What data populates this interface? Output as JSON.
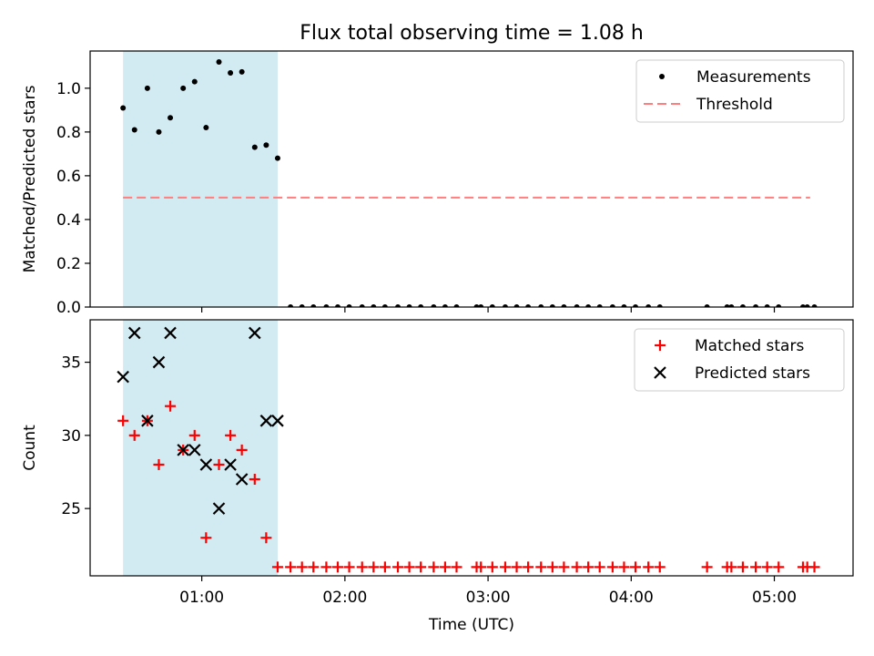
{
  "title": "Flux total observing time = 1.08 h",
  "colors": {
    "highlight": "#add8e6",
    "measurement": "#000000",
    "threshold": "#ff7f7f",
    "matched": "#ff0000",
    "predicted": "#000000"
  },
  "chart_data": [
    {
      "type": "scatter",
      "ylabel": "Matched/Predicted stars",
      "ylim": [
        0,
        1.17
      ],
      "yticks": [
        "0.0",
        "0.2",
        "0.4",
        "0.6",
        "0.8",
        "1.0"
      ],
      "xlim": [
        0.22,
        5.55
      ],
      "highlight_span_hours": [
        0.45,
        1.53
      ],
      "legend_position": "upper right",
      "series": [
        {
          "name": "Measurements",
          "marker": "dot",
          "x": [
            0.45,
            0.53,
            0.62,
            0.7,
            0.78,
            0.87,
            0.95,
            1.03,
            1.12,
            1.2,
            1.28,
            1.37,
            1.45,
            1.53,
            1.62,
            1.7,
            1.78,
            1.87,
            1.95,
            2.03,
            2.12,
            2.2,
            2.28,
            2.37,
            2.45,
            2.53,
            2.62,
            2.7,
            2.78,
            2.92,
            2.95,
            3.03,
            3.12,
            3.2,
            3.28,
            3.37,
            3.45,
            3.53,
            3.62,
            3.7,
            3.78,
            3.87,
            3.95,
            4.03,
            4.12,
            4.2,
            4.53,
            4.67,
            4.7,
            4.78,
            4.87,
            4.95,
            5.03,
            5.2,
            5.23,
            5.28
          ],
          "y": [
            0.91,
            0.81,
            1.0,
            0.8,
            0.865,
            1.0,
            1.03,
            0.82,
            1.12,
            1.07,
            1.075,
            0.73,
            0.74,
            0.68,
            0,
            0,
            0,
            0,
            0,
            0,
            0,
            0,
            0,
            0,
            0,
            0,
            0,
            0,
            0,
            0,
            0,
            0,
            0,
            0,
            0,
            0,
            0,
            0,
            0,
            0,
            0,
            0,
            0,
            0,
            0,
            0,
            0,
            0,
            0,
            0,
            0,
            0,
            0,
            0,
            0,
            0
          ]
        },
        {
          "name": "Threshold",
          "line": "dashed",
          "x": [
            0.45,
            5.25
          ],
          "y": [
            0.5,
            0.5
          ]
        }
      ]
    },
    {
      "type": "scatter",
      "ylabel": "Count",
      "xlabel": "Time (UTC)",
      "ylim": [
        20.4,
        37.9
      ],
      "yticks": [
        "25",
        "30",
        "35"
      ],
      "xlim": [
        0.22,
        5.55
      ],
      "xticks": [
        {
          "value": 1,
          "label": "01:00"
        },
        {
          "value": 2,
          "label": "02:00"
        },
        {
          "value": 3,
          "label": "03:00"
        },
        {
          "value": 4,
          "label": "04:00"
        },
        {
          "value": 5,
          "label": "05:00"
        }
      ],
      "highlight_span_hours": [
        0.45,
        1.53
      ],
      "legend_position": "upper right",
      "series": [
        {
          "name": "Matched stars",
          "marker": "plus",
          "x": [
            0.45,
            0.53,
            0.62,
            0.7,
            0.78,
            0.87,
            0.95,
            1.03,
            1.12,
            1.2,
            1.28,
            1.37,
            1.45,
            1.53,
            1.62,
            1.7,
            1.78,
            1.87,
            1.95,
            2.03,
            2.12,
            2.2,
            2.28,
            2.37,
            2.45,
            2.53,
            2.62,
            2.7,
            2.78,
            2.92,
            2.95,
            3.03,
            3.12,
            3.2,
            3.28,
            3.37,
            3.45,
            3.53,
            3.62,
            3.7,
            3.78,
            3.87,
            3.95,
            4.03,
            4.12,
            4.2,
            4.53,
            4.67,
            4.7,
            4.78,
            4.87,
            4.95,
            5.03,
            5.2,
            5.23,
            5.28
          ],
          "y": [
            31,
            30,
            31,
            28,
            32,
            29,
            30,
            23,
            28,
            30,
            29,
            27,
            23,
            21,
            21,
            21,
            21,
            21,
            21,
            21,
            21,
            21,
            21,
            21,
            21,
            21,
            21,
            21,
            21,
            21,
            21,
            21,
            21,
            21,
            21,
            21,
            21,
            21,
            21,
            21,
            21,
            21,
            21,
            21,
            21,
            21,
            21,
            21,
            21,
            21,
            21,
            21,
            21,
            21,
            21,
            21
          ]
        },
        {
          "name": "Predicted stars",
          "marker": "x",
          "x": [
            0.45,
            0.53,
            0.62,
            0.7,
            0.78,
            0.87,
            0.95,
            1.03,
            1.12,
            1.2,
            1.28,
            1.37,
            1.45,
            1.53
          ],
          "y": [
            34,
            37,
            31,
            35,
            37,
            29,
            29,
            28,
            25,
            28,
            27,
            37,
            31,
            31
          ]
        }
      ]
    }
  ]
}
